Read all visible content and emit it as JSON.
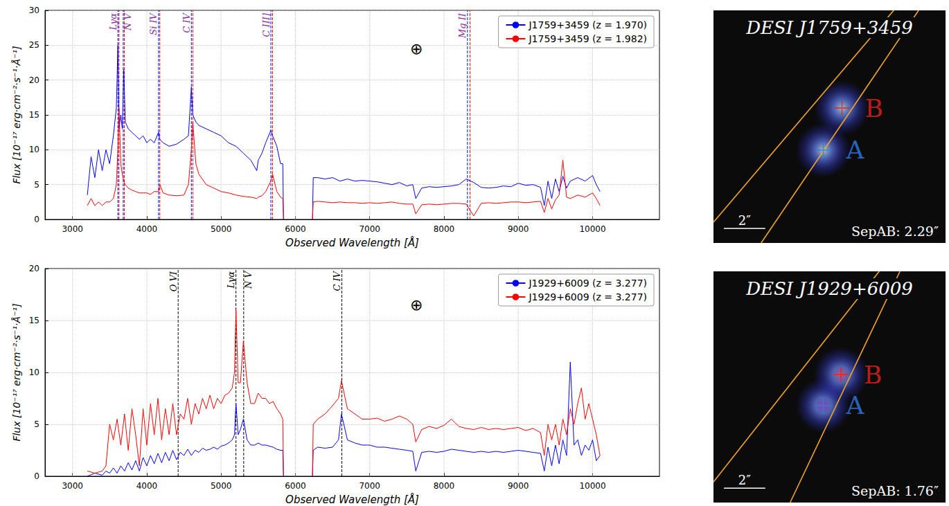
{
  "chart_data": [
    {
      "type": "line",
      "xlabel": "Observed Wavelength [Å]",
      "ylabel": "Flux [10⁻¹⁷ erg·cm⁻²·s⁻¹·Å⁻¹]",
      "xlim": [
        2630,
        10900
      ],
      "xticks": [
        3000,
        4000,
        5000,
        6000,
        7000,
        8000,
        9000,
        10000
      ],
      "ylim": [
        0,
        30
      ],
      "yticks": [
        0,
        5,
        10,
        15,
        20,
        25,
        30
      ],
      "grid": true,
      "legend": "upper right",
      "x": [
        3200,
        3250,
        3300,
        3350,
        3400,
        3450,
        3500,
        3550,
        3590,
        3611,
        3626,
        3650,
        3670,
        3690,
        3710,
        3750,
        3800,
        3850,
        3900,
        3950,
        4000,
        4050,
        4100,
        4158,
        4175,
        4220,
        4300,
        4400,
        4500,
        4560,
        4600,
        4619,
        4660,
        4700,
        4800,
        4900,
        5000,
        5100,
        5200,
        5300,
        5400,
        5480,
        5500,
        5550,
        5600,
        5670,
        5693,
        5750,
        5800,
        5830,
        5840,
        6000,
        6230,
        6240,
        6300,
        6400,
        6500,
        6600,
        6700,
        6800,
        6900,
        7000,
        7100,
        7200,
        7300,
        7400,
        7500,
        7580,
        7620,
        7700,
        7800,
        7900,
        8000,
        8100,
        8200,
        8300,
        8400,
        8500,
        8600,
        8700,
        8800,
        8900,
        9000,
        9100,
        9200,
        9300,
        9350,
        9400,
        9450,
        9500,
        9550,
        9600,
        9650,
        9700,
        9800,
        9900,
        10000,
        10050,
        10100
      ],
      "series": [
        {
          "name": "J1759+3459 (z = 1.970)",
          "color": "#0000ff",
          "values": [
            3.5,
            9,
            6,
            10,
            7,
            10,
            8,
            12,
            16,
            25,
            13,
            15,
            13,
            21.5,
            14,
            13,
            12.5,
            12,
            11.5,
            12,
            11,
            11.5,
            11,
            12.5,
            11.5,
            11,
            10.5,
            10.8,
            11.5,
            12,
            19,
            15,
            14,
            13.5,
            13,
            12.5,
            12,
            11,
            10.5,
            9.5,
            8.5,
            7,
            8.5,
            9.5,
            11,
            12.8,
            12,
            10.5,
            8,
            8,
            0,
            null,
            0,
            6,
            6,
            5.8,
            6,
            5.5,
            5.8,
            5.5,
            5.6,
            5.5,
            5.4,
            5.2,
            5,
            5.3,
            4.8,
            5,
            3,
            4.5,
            4.7,
            4.6,
            4.7,
            4.8,
            5,
            5.8,
            5.3,
            4.6,
            4.5,
            4.6,
            4.8,
            4.7,
            5.2,
            4.9,
            5,
            4.6,
            2,
            5.5,
            3,
            5.8,
            4,
            6.2,
            4.5,
            5.5,
            6,
            5.5,
            6.3,
            5,
            4
          ]
        },
        {
          "name": "J1759+3459 (z = 1.982)",
          "color": "#ff0000",
          "values": [
            2,
            3,
            2,
            2.5,
            2,
            2.5,
            2.5,
            3,
            5,
            10,
            16,
            8,
            6.5,
            5.5,
            5,
            4.5,
            4.2,
            4,
            3.8,
            3.8,
            3.8,
            3.6,
            4,
            4,
            5,
            3.8,
            3.5,
            3.4,
            3.5,
            5,
            10,
            14,
            8,
            6.5,
            5,
            4.5,
            4,
            3.8,
            3.5,
            3.3,
            3.2,
            3,
            3.2,
            3.4,
            4,
            5.5,
            6.5,
            4,
            3.2,
            3,
            0,
            null,
            0,
            2.5,
            2.6,
            2.5,
            2.4,
            2.5,
            2.4,
            2.4,
            2.3,
            2.4,
            2.3,
            2.4,
            2.5,
            2.3,
            2.2,
            2.2,
            0.8,
            2.1,
            2.2,
            2.1,
            2.2,
            2.3,
            2.3,
            2.2,
            0.5,
            2.3,
            2.4,
            2.3,
            2.4,
            2.5,
            2.5,
            2.4,
            2.5,
            2.6,
            1,
            3,
            1.5,
            2.8,
            3.5,
            8.5,
            3.2,
            3,
            3.5,
            3.2,
            3.8,
            3,
            2
          ]
        }
      ],
      "vlines": [
        {
          "label": "Lyα",
          "x": [
            3611,
            3626
          ]
        },
        {
          "label": "N V",
          "x": [
            3683,
            3698
          ]
        },
        {
          "label": "Si IV",
          "x": [
            4158,
            4175
          ]
        },
        {
          "label": "C IV",
          "x": [
            4600,
            4619
          ]
        },
        {
          "label": "C III]",
          "x": [
            5670,
            5693
          ]
        },
        {
          "label": "Mg II",
          "x": [
            8316,
            8350
          ]
        }
      ],
      "annotations": [
        {
          "text": "⊕",
          "x": 7630,
          "y": 24.5
        }
      ]
    },
    {
      "type": "line",
      "xlabel": "Observed Wavelength [Å]",
      "ylabel": "Flux [10⁻¹⁷ erg·cm⁻²·s⁻¹·Å⁻¹]",
      "xlim": [
        2630,
        10900
      ],
      "xticks": [
        3000,
        4000,
        5000,
        6000,
        7000,
        8000,
        9000,
        10000
      ],
      "ylim": [
        0,
        20
      ],
      "yticks": [
        0,
        5,
        10,
        15,
        20
      ],
      "grid": true,
      "legend": "upper right",
      "x": [
        3200,
        3300,
        3400,
        3450,
        3500,
        3550,
        3600,
        3650,
        3700,
        3750,
        3800,
        3850,
        3900,
        3950,
        4000,
        4050,
        4100,
        4150,
        4200,
        4250,
        4300,
        4350,
        4400,
        4450,
        4500,
        4550,
        4600,
        4650,
        4700,
        4750,
        4800,
        4850,
        4900,
        4950,
        5000,
        5050,
        5100,
        5150,
        5180,
        5200,
        5230,
        5260,
        5300,
        5350,
        5400,
        5450,
        5500,
        5550,
        5600,
        5650,
        5700,
        5750,
        5800,
        5830,
        5840,
        6000,
        6230,
        6240,
        6300,
        6400,
        6500,
        6580,
        6620,
        6700,
        6800,
        6900,
        7000,
        7100,
        7200,
        7300,
        7400,
        7500,
        7580,
        7620,
        7700,
        7800,
        7900,
        8000,
        8100,
        8200,
        8300,
        8400,
        8500,
        8600,
        8700,
        8800,
        8900,
        9000,
        9100,
        9200,
        9300,
        9350,
        9400,
        9450,
        9500,
        9550,
        9600,
        9650,
        9700,
        9750,
        9800,
        9850,
        9900,
        9950,
        10000,
        10050,
        10100
      ],
      "series": [
        {
          "name": "J1929+6009 (z = 3.277)",
          "color": "#0000ff",
          "values": [
            0,
            0.3,
            0.1,
            0.5,
            0.3,
            0.8,
            0.3,
            1,
            0.5,
            1.3,
            0.6,
            1.5,
            0.5,
            1.8,
            1,
            2,
            1.2,
            2.2,
            1.3,
            2.3,
            1.5,
            2.5,
            1.6,
            2.3,
            2,
            2.6,
            2,
            2.5,
            2.3,
            2.7,
            2.5,
            2.6,
            2.8,
            2.6,
            2.9,
            3,
            3.2,
            3.5,
            4,
            7,
            4,
            4.5,
            5.5,
            3.5,
            3,
            3,
            3.2,
            3,
            3,
            2.9,
            2.8,
            2.6,
            2.5,
            2.5,
            0,
            null,
            0,
            2.5,
            2.8,
            2.7,
            2.8,
            3.5,
            6,
            3.5,
            3.2,
            3,
            3,
            2.8,
            2.8,
            2.7,
            2.6,
            2.5,
            2.4,
            0.5,
            2.3,
            2.4,
            2.3,
            2.4,
            2.6,
            2.5,
            2.4,
            2.3,
            2.4,
            2.3,
            2.4,
            2.3,
            2.4,
            2.5,
            2.4,
            2.3,
            2.2,
            0.5,
            2.8,
            1,
            3,
            1.2,
            3.5,
            2,
            11,
            3,
            3.5,
            2,
            3,
            2.5,
            3.5,
            1.5,
            2
          ]
        },
        {
          "name": "J1929+6009 (z = 3.277)",
          "color": "#ff0000",
          "values": [
            0.5,
            0.3,
            0.5,
            1,
            5,
            3.5,
            5.5,
            3,
            6,
            2.5,
            6.5,
            4,
            1,
            6.5,
            3,
            7,
            4,
            7.5,
            3.5,
            6.5,
            4,
            7,
            4,
            6,
            5.5,
            7.5,
            5,
            7,
            6,
            7.5,
            6.5,
            7.8,
            6.5,
            7.5,
            7,
            7.8,
            8,
            8.5,
            10,
            16,
            9,
            9,
            13,
            9,
            7,
            7,
            8,
            7.5,
            7.5,
            7,
            7.2,
            6.5,
            6,
            5.5,
            0,
            null,
            0,
            5,
            5.5,
            6,
            6.8,
            7.5,
            9.2,
            6.5,
            6,
            5.5,
            5.5,
            5.6,
            5.3,
            5.5,
            5.8,
            5.5,
            5,
            3.3,
            4.5,
            4.8,
            4.6,
            4.9,
            5.5,
            4.8,
            4.6,
            4.5,
            4.7,
            4.5,
            4.6,
            4.5,
            4.6,
            4.7,
            4.4,
            4.6,
            4.2,
            2,
            5,
            3.5,
            5,
            3,
            5.5,
            4,
            6.5,
            5,
            7,
            8.5,
            5.5,
            7,
            5.5,
            4,
            2
          ]
        }
      ],
      "vlines": [
        {
          "label": "O VI",
          "x": 4422,
          "color": "#000000"
        },
        {
          "label": "Lyα",
          "x": 5200,
          "color": "#000000"
        },
        {
          "label": "N V",
          "x": 5304,
          "color": "#000000"
        },
        {
          "label": "C IV",
          "x": 6625,
          "color": "#000000"
        }
      ],
      "annotations": [
        {
          "text": "⊕",
          "x": 7630,
          "y": 16.5
        }
      ]
    },
    {
      "type": "scatter",
      "title": "DESI J1759+3459",
      "xlim": [
        -5.6,
        5.6
      ],
      "ylim": [
        -5.6,
        5.6
      ],
      "tick_labels": false,
      "grid": false,
      "points": [
        {
          "name": "A",
          "x": -0.3,
          "y": -1.13,
          "color": "#2f7de8"
        },
        {
          "name": "B",
          "x": 0.6,
          "y": 0.9,
          "color": "#e8231e"
        }
      ],
      "slits": [
        {
          "color": "#f5a623",
          "x": [
            -5.6,
            3.1
          ],
          "y": [
            -4.6,
            5.6
          ]
        },
        {
          "color": "#f5a623",
          "x": [
            -3.3,
            4.3
          ],
          "y": [
            -5.6,
            5.6
          ]
        }
      ],
      "scale_bar": {
        "length": 2,
        "label": "2″"
      },
      "annotations": [
        {
          "text": "SepAB: 2.29″"
        }
      ]
    },
    {
      "type": "scatter",
      "title": "DESI J1929+6009",
      "xlim": [
        -5.6,
        5.6
      ],
      "ylim": [
        -5.6,
        5.6
      ],
      "tick_labels": false,
      "grid": false,
      "points": [
        {
          "name": "A",
          "x": -0.3,
          "y": -0.9,
          "color": "#2f7de8"
        },
        {
          "name": "B",
          "x": 0.55,
          "y": 0.6,
          "color": "#e8231e"
        }
      ],
      "slits": [
        {
          "color": "#f5a623",
          "x": [
            -5.6,
            2.4
          ],
          "y": [
            -4.6,
            5.6
          ]
        },
        {
          "color": "#f5a623",
          "x": [
            -1.9,
            3.4
          ],
          "y": [
            -5.6,
            5.6
          ]
        }
      ],
      "scale_bar": {
        "length": 2,
        "label": "2″"
      },
      "annotations": [
        {
          "text": "SepAB: 1.76″"
        }
      ]
    }
  ]
}
